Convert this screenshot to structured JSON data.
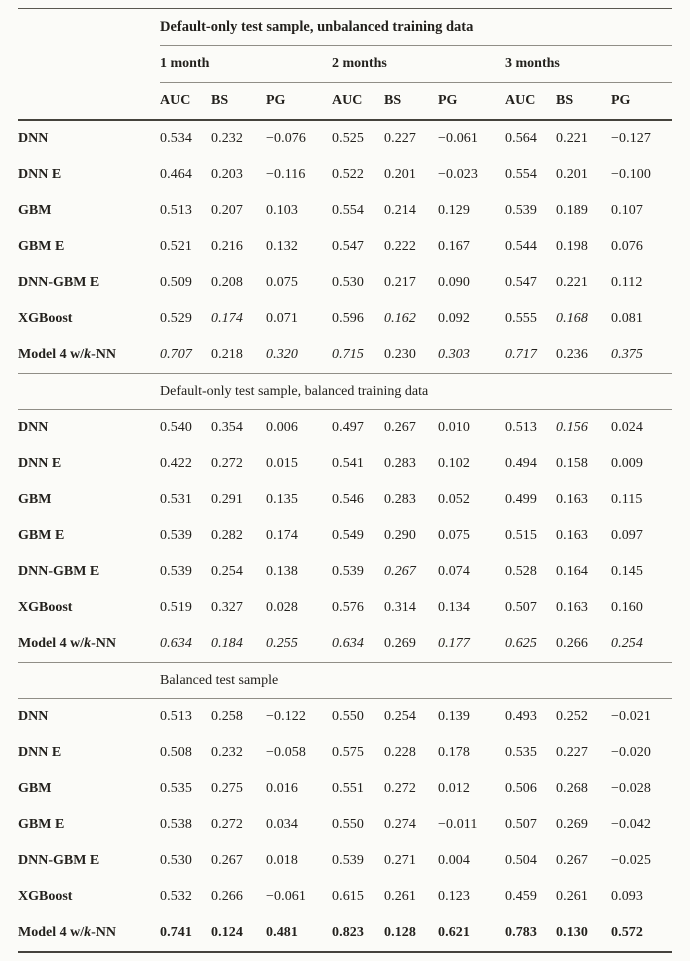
{
  "table": {
    "month_groups": [
      "1 month",
      "2 months",
      "3 months"
    ],
    "metrics": [
      "AUC",
      "BS",
      "PG"
    ],
    "sections": [
      {
        "title": "Default-only test sample, unbalanced training data",
        "rows": [
          {
            "label": "DNN",
            "values": [
              "0.534",
              "0.232",
              "−0.076",
              "0.525",
              "0.227",
              "−0.061",
              "0.564",
              "0.221",
              "−0.127"
            ]
          },
          {
            "label": "DNN E",
            "values": [
              "0.464",
              "0.203",
              "−0.116",
              "0.522",
              "0.201",
              "−0.023",
              "0.554",
              "0.201",
              "−0.100"
            ]
          },
          {
            "label": "GBM",
            "values": [
              "0.513",
              "0.207",
              "0.103",
              "0.554",
              "0.214",
              "0.129",
              "0.539",
              "0.189",
              "0.107"
            ]
          },
          {
            "label": "GBM E",
            "values": [
              "0.521",
              "0.216",
              "0.132",
              "0.547",
              "0.222",
              "0.167",
              "0.544",
              "0.198",
              "0.076"
            ]
          },
          {
            "label": "DNN-GBM E",
            "values": [
              "0.509",
              "0.208",
              "0.075",
              "0.530",
              "0.217",
              "0.090",
              "0.547",
              "0.221",
              "0.112"
            ]
          },
          {
            "label": "XGBoost",
            "values": [
              "0.529",
              "0.174",
              "0.071",
              "0.596",
              "0.162",
              "0.092",
              "0.555",
              "0.168",
              "0.081"
            ],
            "styles": [
              "n",
              "i",
              "n",
              "n",
              "i",
              "n",
              "n",
              "i",
              "n"
            ]
          },
          {
            "label": "Model 4 w/k-NN",
            "em": "k",
            "values": [
              "0.707",
              "0.218",
              "0.320",
              "0.715",
              "0.230",
              "0.303",
              "0.717",
              "0.236",
              "0.375"
            ],
            "styles": [
              "i",
              "n",
              "i",
              "i",
              "n",
              "i",
              "i",
              "n",
              "i"
            ]
          }
        ]
      },
      {
        "title": "Default-only test sample, balanced training data",
        "rows": [
          {
            "label": "DNN",
            "values": [
              "0.540",
              "0.354",
              "0.006",
              "0.497",
              "0.267",
              "0.010",
              "0.513",
              "0.156",
              "0.024"
            ],
            "styles": [
              "n",
              "n",
              "n",
              "n",
              "n",
              "n",
              "n",
              "i",
              "n"
            ]
          },
          {
            "label": "DNN E",
            "values": [
              "0.422",
              "0.272",
              "0.015",
              "0.541",
              "0.283",
              "0.102",
              "0.494",
              "0.158",
              "0.009"
            ]
          },
          {
            "label": "GBM",
            "values": [
              "0.531",
              "0.291",
              "0.135",
              "0.546",
              "0.283",
              "0.052",
              "0.499",
              "0.163",
              "0.115"
            ]
          },
          {
            "label": "GBM E",
            "values": [
              "0.539",
              "0.282",
              "0.174",
              "0.549",
              "0.290",
              "0.075",
              "0.515",
              "0.163",
              "0.097"
            ]
          },
          {
            "label": "DNN-GBM E",
            "values": [
              "0.539",
              "0.254",
              "0.138",
              "0.539",
              "0.267",
              "0.074",
              "0.528",
              "0.164",
              "0.145"
            ],
            "styles": [
              "n",
              "n",
              "n",
              "n",
              "i",
              "n",
              "n",
              "n",
              "n"
            ]
          },
          {
            "label": "XGBoost",
            "values": [
              "0.519",
              "0.327",
              "0.028",
              "0.576",
              "0.314",
              "0.134",
              "0.507",
              "0.163",
              "0.160"
            ]
          },
          {
            "label": "Model 4 w/k-NN",
            "em": "k",
            "values": [
              "0.634",
              "0.184",
              "0.255",
              "0.634",
              "0.269",
              "0.177",
              "0.625",
              "0.266",
              "0.254"
            ],
            "styles": [
              "i",
              "i",
              "i",
              "i",
              "n",
              "i",
              "i",
              "n",
              "i"
            ]
          }
        ]
      },
      {
        "title": "Balanced test sample",
        "rows": [
          {
            "label": "DNN",
            "values": [
              "0.513",
              "0.258",
              "−0.122",
              "0.550",
              "0.254",
              "0.139",
              "0.493",
              "0.252",
              "−0.021"
            ]
          },
          {
            "label": "DNN E",
            "values": [
              "0.508",
              "0.232",
              "−0.058",
              "0.575",
              "0.228",
              "0.178",
              "0.535",
              "0.227",
              "−0.020"
            ]
          },
          {
            "label": "GBM",
            "values": [
              "0.535",
              "0.275",
              "0.016",
              "0.551",
              "0.272",
              "0.012",
              "0.506",
              "0.268",
              "−0.028"
            ]
          },
          {
            "label": "GBM E",
            "values": [
              "0.538",
              "0.272",
              "0.034",
              "0.550",
              "0.274",
              "−0.011",
              "0.507",
              "0.269",
              "−0.042"
            ]
          },
          {
            "label": "DNN-GBM E",
            "values": [
              "0.530",
              "0.267",
              "0.018",
              "0.539",
              "0.271",
              "0.004",
              "0.504",
              "0.267",
              "−0.025"
            ]
          },
          {
            "label": "XGBoost",
            "values": [
              "0.532",
              "0.266",
              "−0.061",
              "0.615",
              "0.261",
              "0.123",
              "0.459",
              "0.261",
              "0.093"
            ]
          },
          {
            "label": "Model 4 w/k-NN",
            "em": "k",
            "values": [
              "0.741",
              "0.124",
              "0.481",
              "0.823",
              "0.128",
              "0.621",
              "0.783",
              "0.130",
              "0.572"
            ],
            "styles": [
              "b",
              "b",
              "b",
              "b",
              "b",
              "b",
              "b",
              "b",
              "b"
            ]
          }
        ]
      }
    ]
  }
}
